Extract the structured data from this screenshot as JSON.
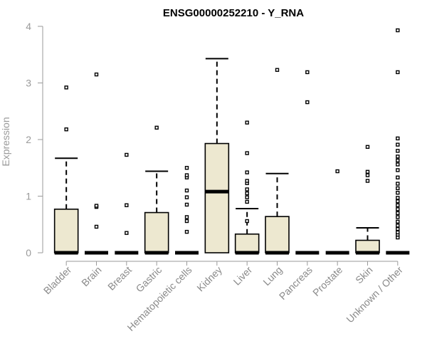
{
  "chart_data": {
    "type": "box",
    "title": "ENSG00000252210 - Y_RNA",
    "xlabel": "",
    "ylabel": "Expression",
    "ylim": [
      0,
      4
    ],
    "yticks": [
      0,
      1,
      2,
      3,
      4
    ],
    "box_fill": "#ede8d0",
    "categories": [
      "Bladder",
      "Brain",
      "Breast",
      "Gastric",
      "Hematopoietic cells",
      "Kidney",
      "Liver",
      "Lung",
      "Pancreas",
      "Prostate",
      "Skin",
      "Unknown / Other"
    ],
    "boxes": [
      {
        "min": 0,
        "q1": 0,
        "median": 0,
        "q3": 0.77,
        "max": 1.67,
        "outliers": [
          2.18,
          2.92
        ]
      },
      {
        "min": 0,
        "q1": 0,
        "median": 0,
        "q3": 0,
        "max": 0,
        "outliers": [
          0.46,
          0.81,
          0.83,
          3.15
        ]
      },
      {
        "min": 0,
        "q1": 0,
        "median": 0,
        "q3": 0,
        "max": 0,
        "outliers": [
          0.35,
          0.84,
          1.73
        ]
      },
      {
        "min": 0,
        "q1": 0,
        "median": 0,
        "q3": 0.71,
        "max": 1.44,
        "outliers": [
          2.21
        ]
      },
      {
        "min": 0,
        "q1": 0,
        "median": 0,
        "q3": 0,
        "max": 0,
        "outliers": [
          0.37,
          0.56,
          0.63,
          0.85,
          0.98,
          1.1,
          1.33,
          1.37,
          1.5
        ]
      },
      {
        "min": 0,
        "q1": 0,
        "median": 1.08,
        "q3": 1.93,
        "max": 3.43,
        "outliers": []
      },
      {
        "min": 0,
        "q1": 0,
        "median": 0,
        "q3": 0.33,
        "max": 0.78,
        "outliers": [
          0.56,
          0.9,
          0.98,
          1.05,
          1.12,
          1.23,
          1.27,
          1.42,
          1.76,
          2.3
        ]
      },
      {
        "min": 0,
        "q1": 0,
        "median": 0,
        "q3": 0.64,
        "max": 1.4,
        "outliers": [
          3.23
        ]
      },
      {
        "min": 0,
        "q1": 0,
        "median": 0,
        "q3": 0,
        "max": 0,
        "outliers": [
          2.66,
          3.19
        ]
      },
      {
        "min": 0,
        "q1": 0,
        "median": 0,
        "q3": 0,
        "max": 0,
        "outliers": [
          1.44
        ]
      },
      {
        "min": 0,
        "q1": 0,
        "median": 0,
        "q3": 0.22,
        "max": 0.44,
        "outliers": [
          1.27,
          1.37,
          1.43,
          1.87
        ]
      },
      {
        "min": 0,
        "q1": 0,
        "median": 0,
        "q3": 0,
        "max": 0,
        "outliers": [
          0.27,
          0.32,
          0.36,
          0.42,
          0.48,
          0.55,
          0.63,
          0.7,
          0.77,
          0.84,
          0.91,
          0.97,
          1.06,
          1.14,
          1.22,
          1.33,
          1.46,
          1.56,
          1.63,
          1.7,
          1.8,
          1.91,
          2.02,
          3.19,
          3.93
        ]
      }
    ]
  }
}
